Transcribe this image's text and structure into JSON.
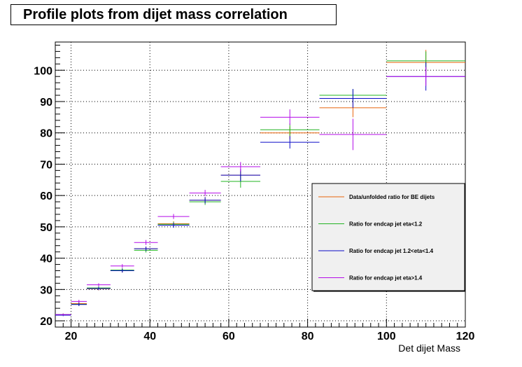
{
  "chart_data": {
    "type": "scatter",
    "title": "Profile plots from dijet mass correlation",
    "xlabel": "Det dijet Mass",
    "ylabel": "",
    "xlim": [
      16,
      120
    ],
    "ylim": [
      18,
      109
    ],
    "xticks": [
      20,
      40,
      60,
      80,
      100,
      120
    ],
    "yticks": [
      20,
      30,
      40,
      50,
      60,
      70,
      80,
      90,
      100
    ],
    "grid": true,
    "legend_position": "right",
    "bins": [
      [
        16,
        20
      ],
      [
        20,
        24
      ],
      [
        24,
        30
      ],
      [
        30,
        36
      ],
      [
        36,
        42
      ],
      [
        42,
        50
      ],
      [
        50,
        58
      ],
      [
        58,
        68
      ],
      [
        68,
        83
      ],
      [
        83,
        100
      ],
      [
        100,
        120
      ]
    ],
    "series": [
      {
        "name": "Data/unfolded ratio for BE dijets",
        "color": "#e8640c",
        "values": [
          22.0,
          25.5,
          30.2,
          36.0,
          43.0,
          51.0,
          58.5,
          66.5,
          80.0,
          88.0,
          102.5
        ],
        "errors": [
          0.3,
          0.5,
          0.5,
          0.6,
          0.7,
          0.8,
          1.0,
          1.5,
          2.0,
          3.0,
          4.0
        ]
      },
      {
        "name": "Ratio for endcap jet eta<1.2",
        "color": "#22b422",
        "values": [
          22.0,
          25.3,
          30.5,
          36.2,
          42.5,
          50.8,
          58.0,
          64.5,
          81.0,
          92.0,
          103.0
        ],
        "errors": [
          0.3,
          0.5,
          0.5,
          0.6,
          0.7,
          0.8,
          1.0,
          2.0,
          2.0,
          2.0,
          3.0
        ]
      },
      {
        "name": "Ratio for endcap jet 1.2<eta<1.4",
        "color": "#0b0bc8",
        "values": [
          21.8,
          25.2,
          30.3,
          36.0,
          43.0,
          50.5,
          58.5,
          66.5,
          77.0,
          91.0,
          98.0
        ],
        "errors": [
          0.3,
          0.5,
          0.5,
          0.6,
          0.7,
          0.8,
          1.0,
          2.0,
          2.0,
          3.0,
          4.5
        ]
      },
      {
        "name": "Ratio for endcap jet eta>1.4",
        "color": "#b40ce8",
        "values": [
          22.0,
          26.2,
          31.5,
          37.5,
          45.0,
          53.3,
          60.8,
          69.2,
          85.0,
          79.5,
          98.0
        ],
        "errors": [
          0.3,
          0.5,
          0.5,
          0.6,
          0.8,
          0.8,
          1.0,
          1.5,
          2.5,
          5.0,
          3.0
        ]
      }
    ]
  }
}
